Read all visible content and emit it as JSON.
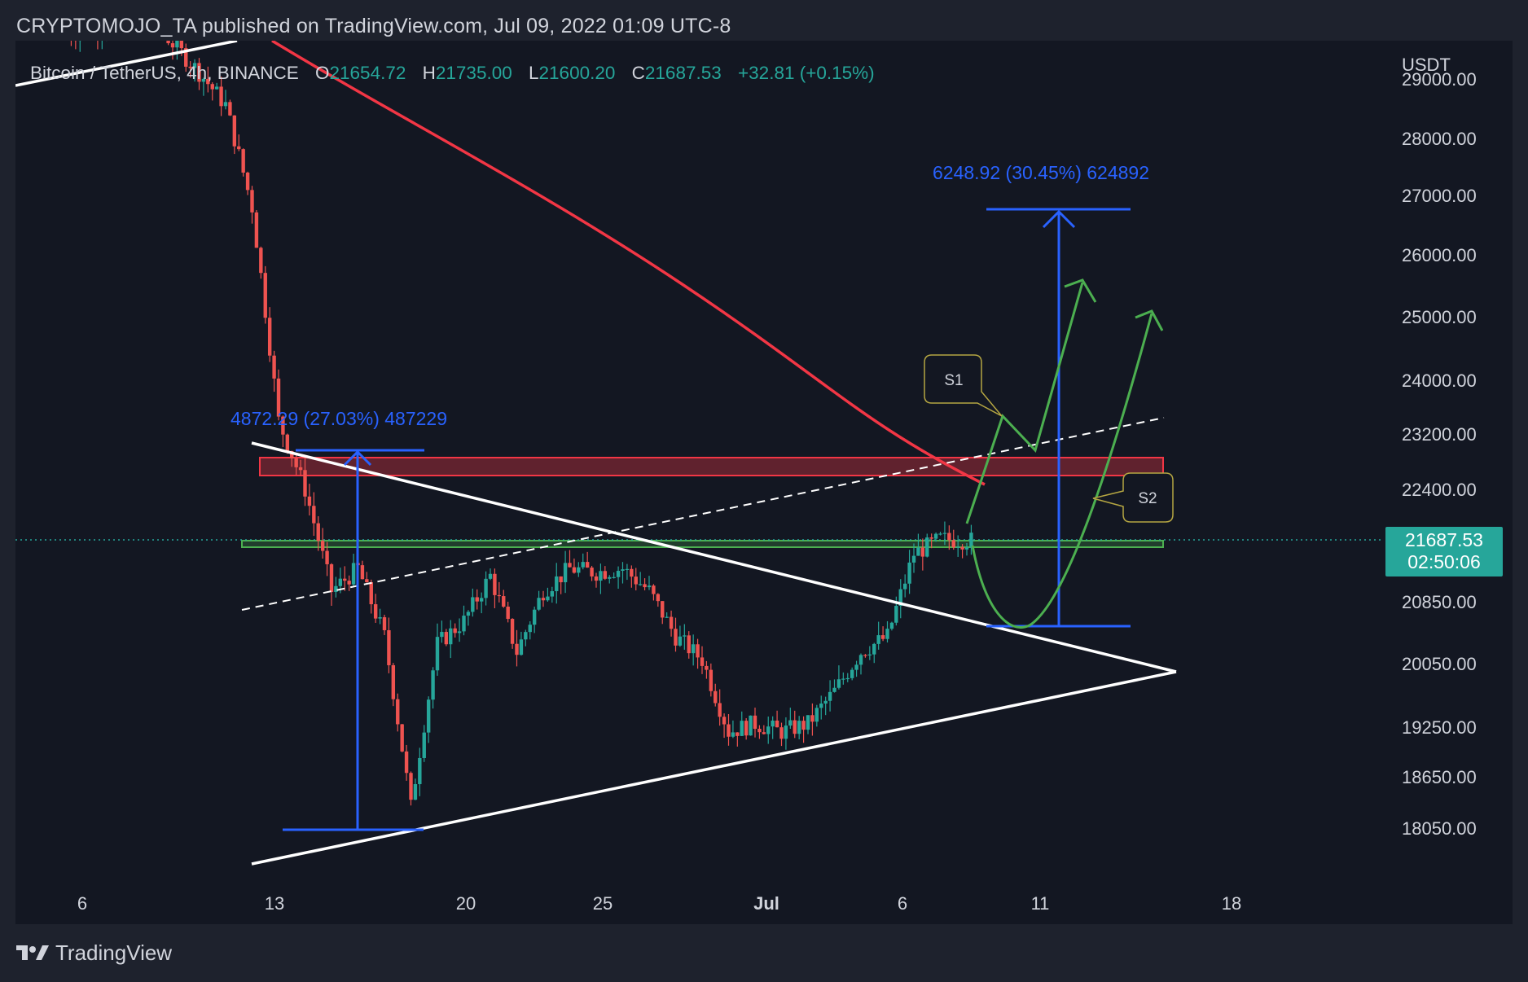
{
  "header": {
    "published_by": "CRYPTOMOJO_TA published on TradingView.com, Jul 09, 2022 01:09 UTC-8"
  },
  "legend": {
    "symbol": "Bitcoin / TetherUS, 4h, BINANCE",
    "open_label": "O",
    "open": "21654.72",
    "high_label": "H",
    "high": "21735.00",
    "low_label": "L",
    "low": "21600.20",
    "close_label": "C",
    "close": "21687.53",
    "change": "+32.81 (+0.15%)"
  },
  "price_axis": {
    "currency": "USDT",
    "ticks": [
      "29000.00",
      "28000.00",
      "27000.00",
      "26000.00",
      "25000.00",
      "24000.00",
      "23200.00",
      "22400.00",
      "20850.00",
      "20050.00",
      "19250.00",
      "18650.00",
      "18050.00"
    ]
  },
  "time_axis": {
    "ticks": [
      "6",
      "13",
      "20",
      "25",
      "Jul",
      "6",
      "11",
      "18"
    ]
  },
  "current_price": {
    "price": "21687.53",
    "countdown": "02:50:06"
  },
  "annotations": {
    "measure_left": "4872.29 (27.03%) 487229",
    "measure_right": "6248.92 (30.45%) 624892",
    "scenario_1": "S1",
    "scenario_2": "S2"
  },
  "colors": {
    "background": "#131722",
    "up_candle": "#26a69a",
    "down_candle": "#ef5350",
    "moving_average": "#f23645",
    "measure_tool": "#2962ff",
    "projection": "#4caf50",
    "trendline": "#ffffff",
    "resistance_zone": "#f23645",
    "support_zone": "#4caf50"
  },
  "footer": {
    "brand": "TradingView",
    "logo_icon": "tradingview-logo-icon"
  },
  "chart_data": {
    "type": "candlestick",
    "symbol": "BTCUSDT",
    "interval": "4h",
    "exchange": "BINANCE",
    "x_range": [
      "2022-06-05",
      "2022-07-19"
    ],
    "y_scale": "log",
    "ylim": [
      17600,
      29200
    ],
    "last_close": 21687.53,
    "approx_close_path": [
      [
        "2022-06-05",
        29900
      ],
      [
        "2022-06-08",
        30300
      ],
      [
        "2022-06-10",
        29200
      ],
      [
        "2022-06-11",
        28600
      ],
      [
        "2022-06-12",
        26800
      ],
      [
        "2022-06-13",
        23400
      ],
      [
        "2022-06-14",
        22400
      ],
      [
        "2022-06-15",
        21000
      ],
      [
        "2022-06-16",
        21300
      ],
      [
        "2022-06-17",
        20400
      ],
      [
        "2022-06-18",
        18300
      ],
      [
        "2022-06-19",
        20300
      ],
      [
        "2022-06-20",
        20600
      ],
      [
        "2022-06-21",
        21200
      ],
      [
        "2022-06-22",
        20200
      ],
      [
        "2022-06-23",
        21000
      ],
      [
        "2022-06-24",
        21300
      ],
      [
        "2022-06-25",
        21250
      ],
      [
        "2022-06-26",
        21300
      ],
      [
        "2022-06-27",
        21000
      ],
      [
        "2022-06-28",
        20400
      ],
      [
        "2022-06-29",
        20100
      ],
      [
        "2022-06-30",
        19200
      ],
      [
        "2022-07-01",
        19300
      ],
      [
        "2022-07-02",
        19200
      ],
      [
        "2022-07-03",
        19300
      ],
      [
        "2022-07-04",
        19700
      ],
      [
        "2022-07-05",
        20200
      ],
      [
        "2022-07-06",
        20400
      ],
      [
        "2022-07-07",
        21500
      ],
      [
        "2022-07-08",
        21700
      ],
      [
        "2022-07-09",
        21687
      ]
    ]
  }
}
